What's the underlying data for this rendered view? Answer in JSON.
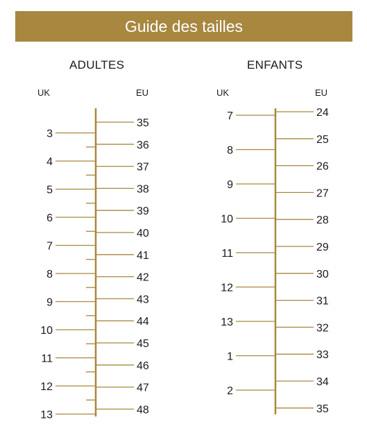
{
  "title": "Guide des tailles",
  "colors": {
    "accent": "#a8873f",
    "line": "#a8873f",
    "text": "#1a1a1a"
  },
  "adults": {
    "heading": "ADULTES",
    "uk_label": "UK",
    "eu_label": "EU",
    "uk_sizes": [
      "3",
      "4",
      "5",
      "6",
      "7",
      "8",
      "9",
      "10",
      "11",
      "12",
      "13"
    ],
    "eu_sizes": [
      "35",
      "36",
      "37",
      "38",
      "39",
      "40",
      "41",
      "42",
      "43",
      "44",
      "45",
      "46",
      "47",
      "48"
    ]
  },
  "kids": {
    "heading": "ENFANTS",
    "uk_label": "UK",
    "eu_label": "EU",
    "uk_sizes": [
      "7",
      "8",
      "9",
      "10",
      "11",
      "12",
      "13",
      "1",
      "2"
    ],
    "eu_sizes": [
      "24",
      "25",
      "26",
      "27",
      "28",
      "29",
      "30",
      "31",
      "32",
      "33",
      "34",
      "35"
    ]
  }
}
